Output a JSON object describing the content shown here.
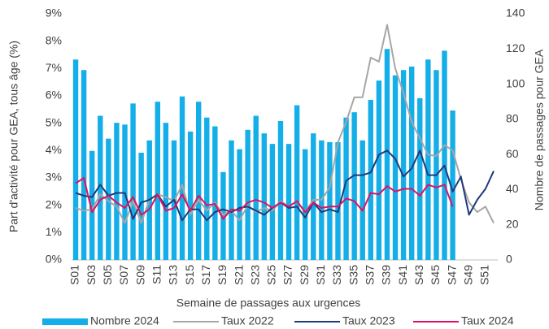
{
  "chart_data": {
    "type": "combo",
    "ylabel": "Part d'activité pour GEA, tous âge (%)",
    "y2label": "Nombre de passages pour GEA",
    "xlabel": "Semaine de passages aux urgences",
    "categories": [
      "S01",
      null,
      "S03",
      null,
      "S05",
      null,
      "S07",
      null,
      "S09",
      null,
      "S11",
      null,
      "S13",
      null,
      "S15",
      null,
      "S17",
      null,
      "S19",
      null,
      "S21",
      null,
      "S23",
      null,
      "S25",
      null,
      "S27",
      null,
      "S29",
      null,
      "S31",
      null,
      "S33",
      null,
      "S35",
      null,
      "S37",
      null,
      "S39",
      null,
      "S41",
      null,
      "S43",
      null,
      "S45",
      null,
      "S47",
      null,
      "S49",
      null,
      "S51",
      null
    ],
    "ylim": [
      0,
      9
    ],
    "yticks": [
      {
        "value": 0,
        "label": "0%"
      },
      {
        "value": 1,
        "label": "1%"
      },
      {
        "value": 2,
        "label": "2%"
      },
      {
        "value": 3,
        "label": "3%"
      },
      {
        "value": 4,
        "label": "4%"
      },
      {
        "value": 5,
        "label": "5%"
      },
      {
        "value": 6,
        "label": "6%"
      },
      {
        "value": 7,
        "label": "7%"
      },
      {
        "value": 8,
        "label": "8%"
      },
      {
        "value": 9,
        "label": "9%"
      }
    ],
    "y2lim": [
      0,
      140
    ],
    "y2ticks": [
      0,
      20,
      40,
      60,
      80,
      100,
      120,
      140
    ],
    "legend": "bottom",
    "series": [
      {
        "name": "Nombre 2024",
        "kind": "bar",
        "axis": "y2",
        "color": "#14aee8",
        "values": [
          114,
          108,
          62,
          82,
          69,
          78,
          77,
          89,
          61,
          68,
          90,
          78,
          68,
          93,
          73,
          90,
          81,
          76,
          50,
          68,
          63,
          74,
          82,
          72,
          66,
          79,
          66,
          88,
          63,
          72,
          68,
          67,
          67,
          81,
          84,
          68,
          91,
          102,
          120,
          105,
          108,
          110,
          92,
          114,
          108,
          119,
          85,
          null,
          null,
          null,
          null,
          null
        ]
      },
      {
        "name": "Taux 2022",
        "kind": "line",
        "color": "#a6a6a6",
        "values": [
          1.9,
          1.8,
          1.85,
          2.4,
          2.15,
          1.95,
          1.35,
          2.15,
          1.35,
          2.2,
          2.4,
          2.3,
          2.15,
          2.75,
          1.65,
          2.2,
          1.8,
          2.1,
          1.65,
          1.8,
          1.45,
          2.0,
          1.75,
          1.9,
          1.8,
          2.15,
          1.95,
          2.15,
          1.75,
          2.2,
          2.2,
          2.65,
          4.3,
          5.05,
          5.95,
          5.95,
          7.4,
          7.25,
          8.6,
          7.0,
          6.1,
          5.05,
          4.45,
          3.85,
          3.8,
          4.2,
          4.0,
          2.95,
          2.1,
          1.75,
          1.95,
          1.35
        ]
      },
      {
        "name": "Taux 2023",
        "kind": "line",
        "color": "#1f3a7a",
        "values": [
          2.45,
          2.35,
          2.3,
          2.75,
          2.35,
          2.45,
          2.45,
          1.5,
          2.1,
          2.2,
          2.4,
          1.95,
          2.2,
          1.45,
          1.85,
          1.85,
          1.45,
          1.75,
          1.85,
          1.75,
          1.9,
          1.95,
          1.8,
          1.65,
          1.9,
          2.1,
          1.9,
          1.95,
          1.55,
          2.1,
          1.75,
          1.85,
          1.75,
          2.9,
          3.1,
          3.1,
          3.2,
          3.85,
          4.0,
          3.7,
          3.05,
          3.35,
          4.0,
          3.1,
          3.1,
          3.45,
          2.5,
          3.05,
          1.65,
          2.2,
          2.6,
          3.25
        ]
      },
      {
        "name": "Taux 2024",
        "kind": "line",
        "color": "#e0115f",
        "values": [
          2.8,
          3.0,
          1.75,
          2.2,
          2.35,
          2.1,
          1.9,
          2.3,
          1.65,
          1.85,
          2.4,
          1.8,
          1.9,
          2.4,
          1.8,
          2.35,
          2.0,
          2.05,
          1.5,
          1.85,
          1.8,
          2.1,
          2.2,
          2.1,
          1.9,
          2.1,
          1.95,
          2.15,
          1.75,
          2.1,
          1.9,
          1.95,
          1.95,
          2.25,
          2.15,
          1.8,
          2.45,
          2.4,
          2.7,
          2.5,
          2.6,
          2.6,
          2.35,
          2.75,
          2.65,
          2.75,
          1.95,
          null,
          null,
          null,
          null,
          null
        ]
      }
    ]
  }
}
